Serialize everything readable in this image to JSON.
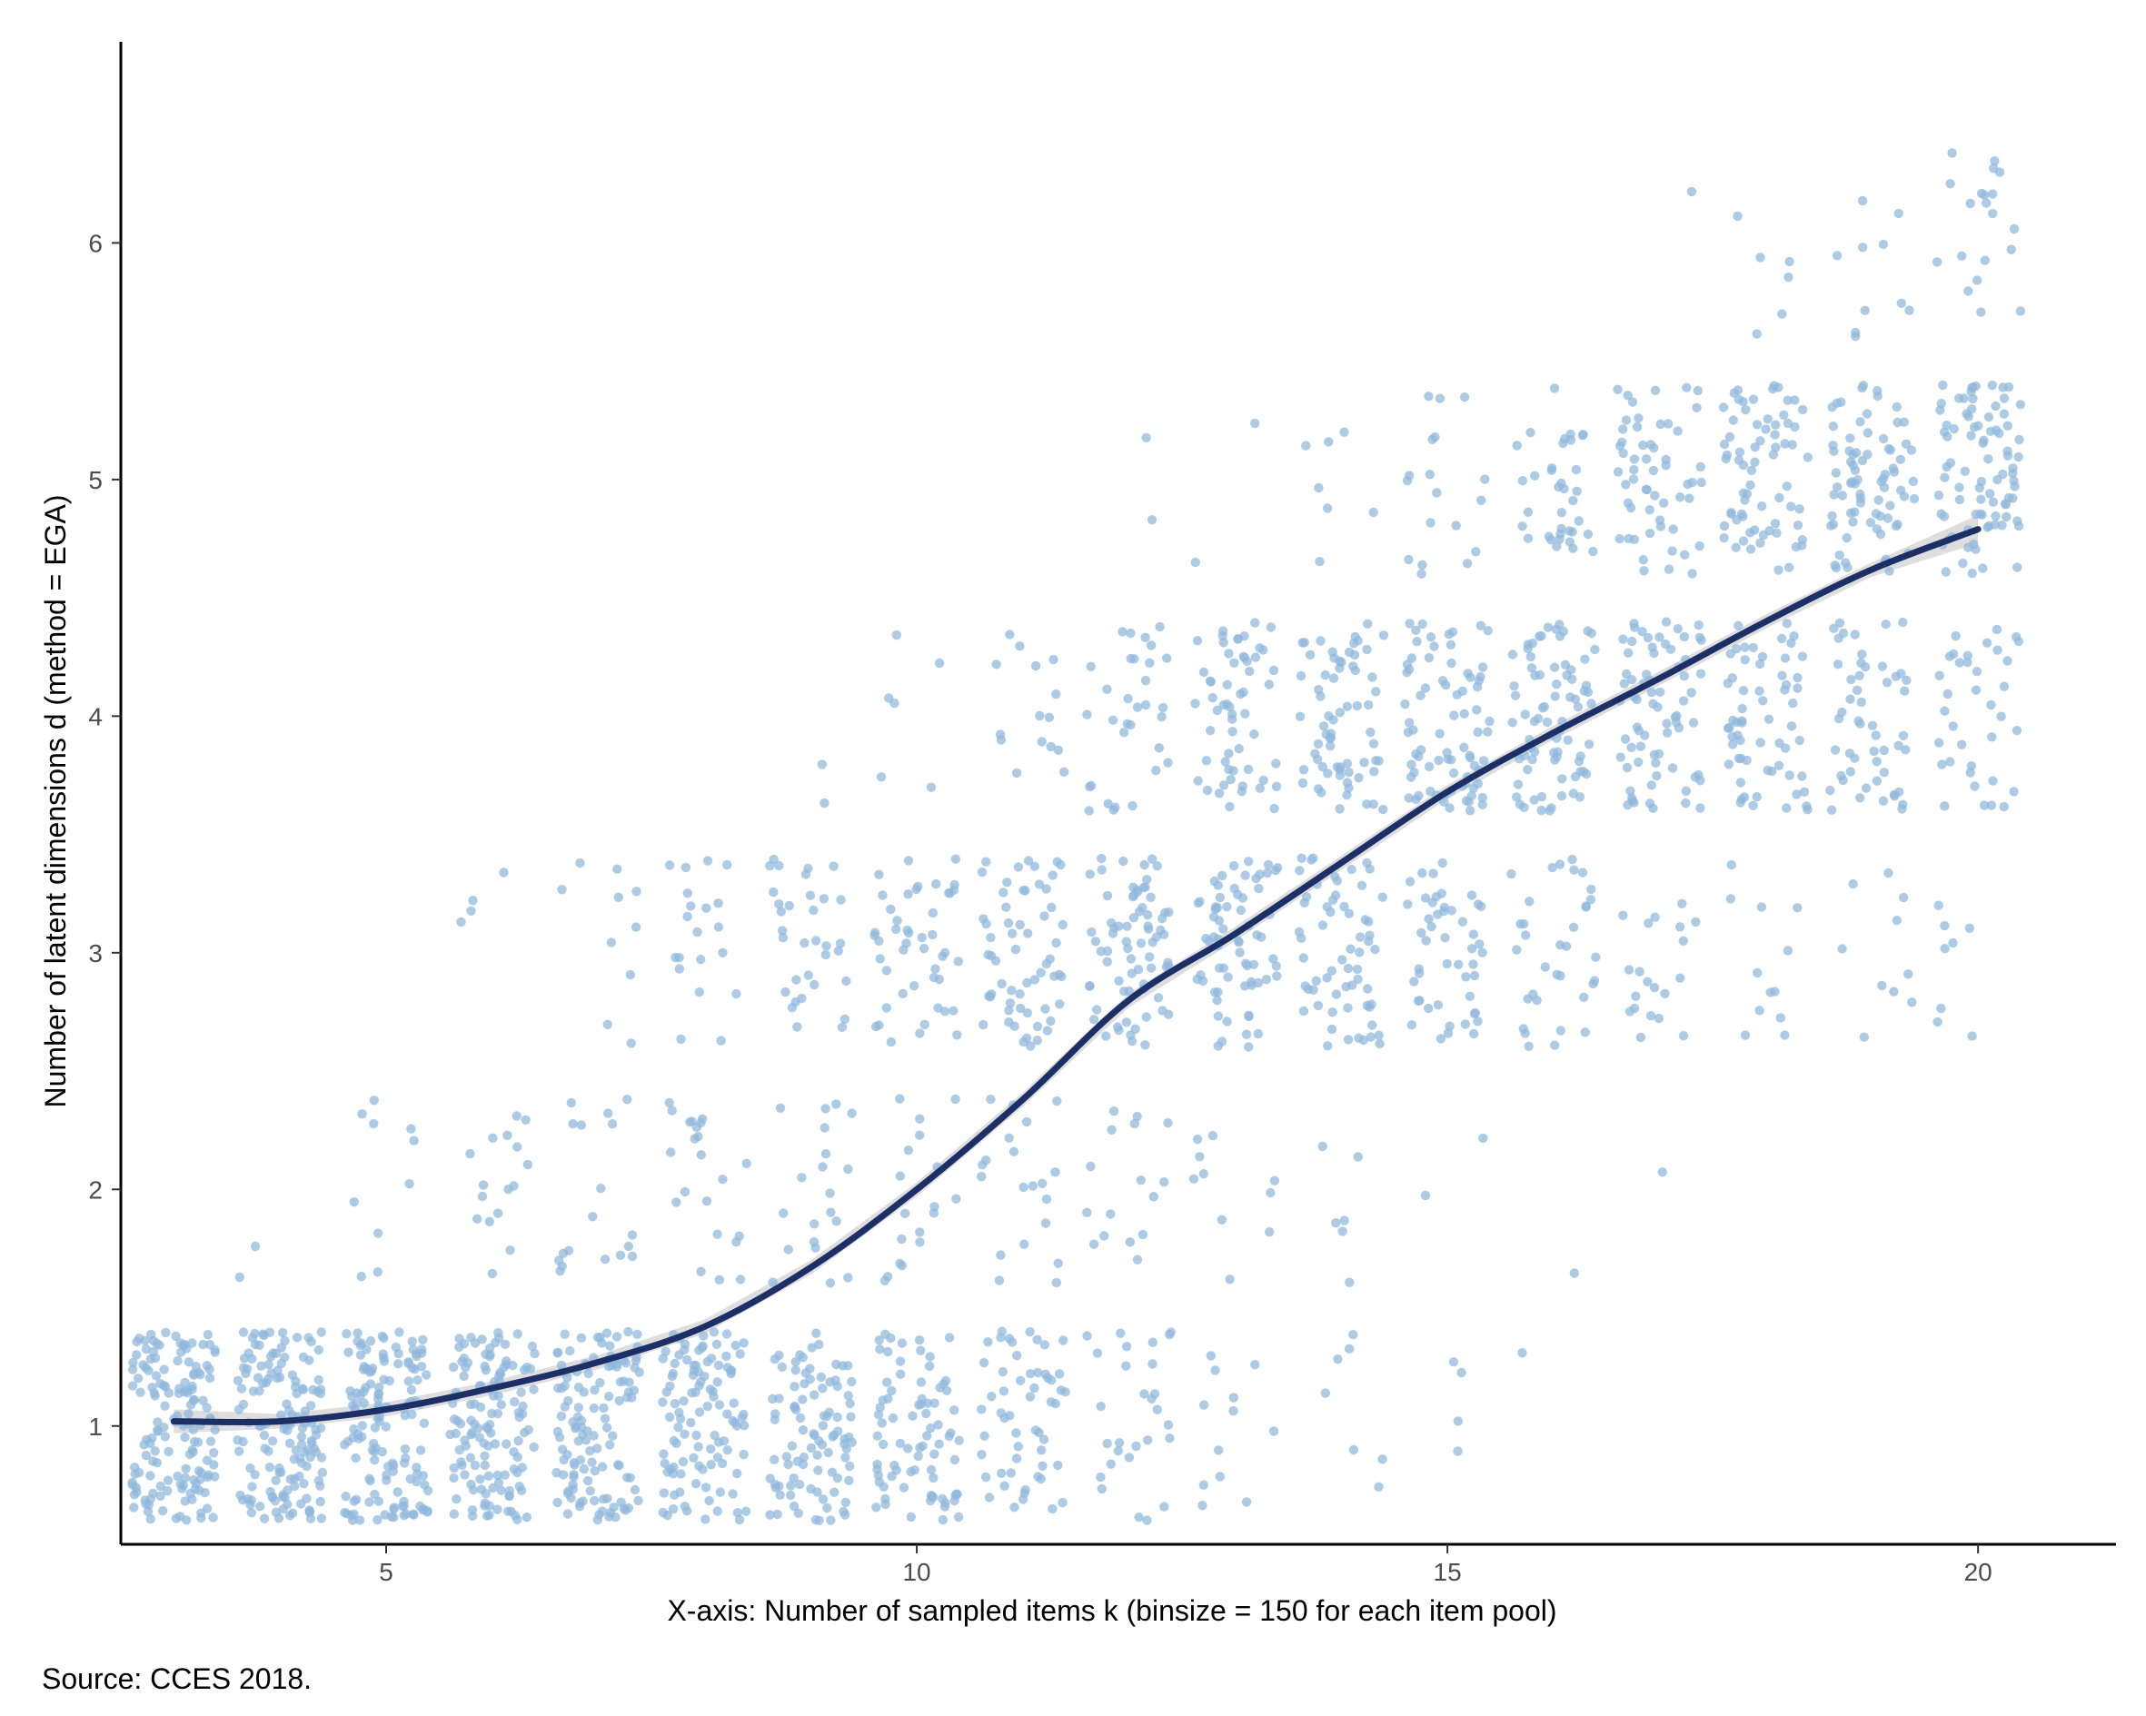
{
  "chart_data": {
    "type": "scatter",
    "title": "",
    "xlabel": "X-axis: Number of sampled items k (binsize = 150 for each item pool)",
    "ylabel": "Number of latent dimensions d (method = EGA)",
    "xlim": [
      2.5,
      21.3
    ],
    "ylim": [
      0.5,
      6.85
    ],
    "x_ticks": [
      5,
      10,
      15,
      20
    ],
    "y_ticks": [
      1,
      2,
      3,
      4,
      5,
      6
    ],
    "grid": false,
    "legend": "none",
    "points_per_k": 150,
    "jitter_width": 0.4,
    "jitter_height": 0.4,
    "counts_by_k": [
      {
        "k": 3,
        "d": {
          "1": 150
        }
      },
      {
        "k": 4,
        "d": {
          "1": 148,
          "2": 2
        }
      },
      {
        "k": 5,
        "d": {
          "1": 140,
          "2": 10
        }
      },
      {
        "k": 6,
        "d": {
          "1": 130,
          "2": 16,
          "3": 4
        }
      },
      {
        "k": 7,
        "d": {
          "1": 122,
          "2": 18,
          "3": 10
        }
      },
      {
        "k": 8,
        "d": {
          "1": 108,
          "2": 22,
          "3": 20
        }
      },
      {
        "k": 9,
        "d": {
          "1": 95,
          "2": 20,
          "3": 33,
          "4": 2
        }
      },
      {
        "k": 10,
        "d": {
          "1": 80,
          "2": 18,
          "3": 46,
          "4": 6
        }
      },
      {
        "k": 11,
        "d": {
          "1": 55,
          "2": 20,
          "3": 60,
          "4": 15
        }
      },
      {
        "k": 12,
        "d": {
          "1": 28,
          "2": 16,
          "3": 72,
          "4": 32,
          "5": 2
        }
      },
      {
        "k": 13,
        "d": {
          "1": 12,
          "2": 10,
          "3": 68,
          "4": 58,
          "5": 2
        }
      },
      {
        "k": 14,
        "d": {
          "1": 7,
          "2": 6,
          "3": 62,
          "4": 68,
          "5": 7
        }
      },
      {
        "k": 15,
        "d": {
          "1": 4,
          "2": 2,
          "3": 48,
          "4": 78,
          "5": 18
        }
      },
      {
        "k": 16,
        "d": {
          "1": 1,
          "2": 1,
          "3": 34,
          "4": 78,
          "5": 36
        }
      },
      {
        "k": 17,
        "d": {
          "2": 1,
          "3": 20,
          "4": 72,
          "5": 56,
          "6": 1
        }
      },
      {
        "k": 18,
        "d": {
          "3": 12,
          "4": 62,
          "5": 70,
          "6": 6
        }
      },
      {
        "k": 19,
        "d": {
          "3": 10,
          "4": 52,
          "5": 78,
          "6": 10
        }
      },
      {
        "k": 20,
        "d": {
          "3": 8,
          "4": 36,
          "5": 86,
          "6": 20
        }
      }
    ],
    "smooth_curve": {
      "x": [
        3,
        4,
        5,
        6,
        7,
        8,
        9,
        10,
        11,
        12,
        13,
        14,
        15,
        16,
        17,
        18,
        19,
        20
      ],
      "y": [
        1.02,
        1.02,
        1.07,
        1.16,
        1.27,
        1.42,
        1.67,
        2.0,
        2.38,
        2.8,
        3.08,
        3.38,
        3.68,
        3.93,
        4.16,
        4.4,
        4.62,
        4.79
      ],
      "ci_halfwidth": [
        0.05,
        0.03,
        0.03,
        0.03,
        0.03,
        0.03,
        0.03,
        0.03,
        0.03,
        0.03,
        0.03,
        0.03,
        0.03,
        0.03,
        0.03,
        0.03,
        0.03,
        0.06
      ]
    },
    "colors": {
      "points": "#8fb7dc",
      "curve": "#1c2f66",
      "ci_band": "#c8c8c8",
      "axis": "#000000"
    }
  },
  "caption": "Source: CCES 2018."
}
